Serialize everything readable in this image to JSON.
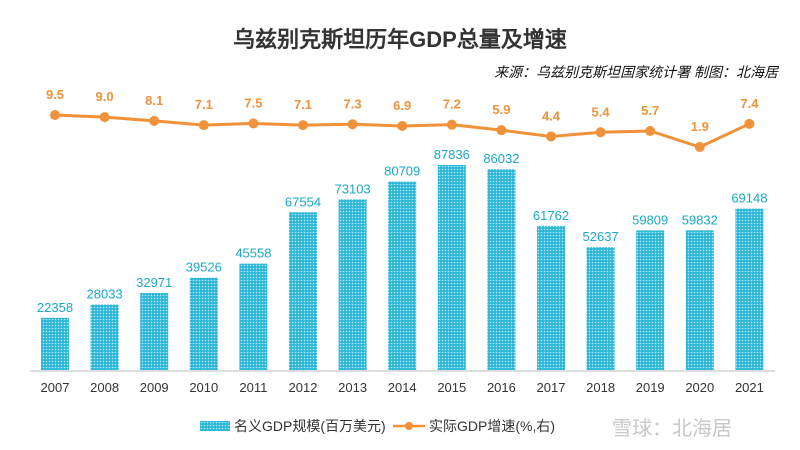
{
  "chart_data": {
    "type": "bar+line",
    "title": "乌兹别克斯坦历年GDP总量及增速",
    "subtitle": "来源：乌兹别克斯坦国家统计署 制图：北海居",
    "categories": [
      "2007",
      "2008",
      "2009",
      "2010",
      "2011",
      "2012",
      "2013",
      "2014",
      "2015",
      "2016",
      "2017",
      "2018",
      "2019",
      "2020",
      "2021"
    ],
    "series": [
      {
        "name": "名义GDP规模(百万美元)",
        "type": "bar",
        "axis": "left",
        "color": "#29b6d8",
        "values": [
          22358,
          28033,
          32971,
          39526,
          45558,
          67554,
          73103,
          80709,
          87836,
          86032,
          61762,
          52637,
          59809,
          59832,
          69148
        ]
      },
      {
        "name": "实际GDP增速(%,右)",
        "type": "line",
        "axis": "right",
        "color": "#f0923a",
        "values": [
          9.5,
          9.0,
          8.1,
          7.1,
          7.5,
          7.1,
          7.3,
          6.9,
          7.2,
          5.9,
          4.4,
          5.4,
          5.7,
          1.9,
          7.4
        ]
      }
    ],
    "legend_position": "bottom",
    "grid": false
  },
  "watermark": "雪球：北海居"
}
